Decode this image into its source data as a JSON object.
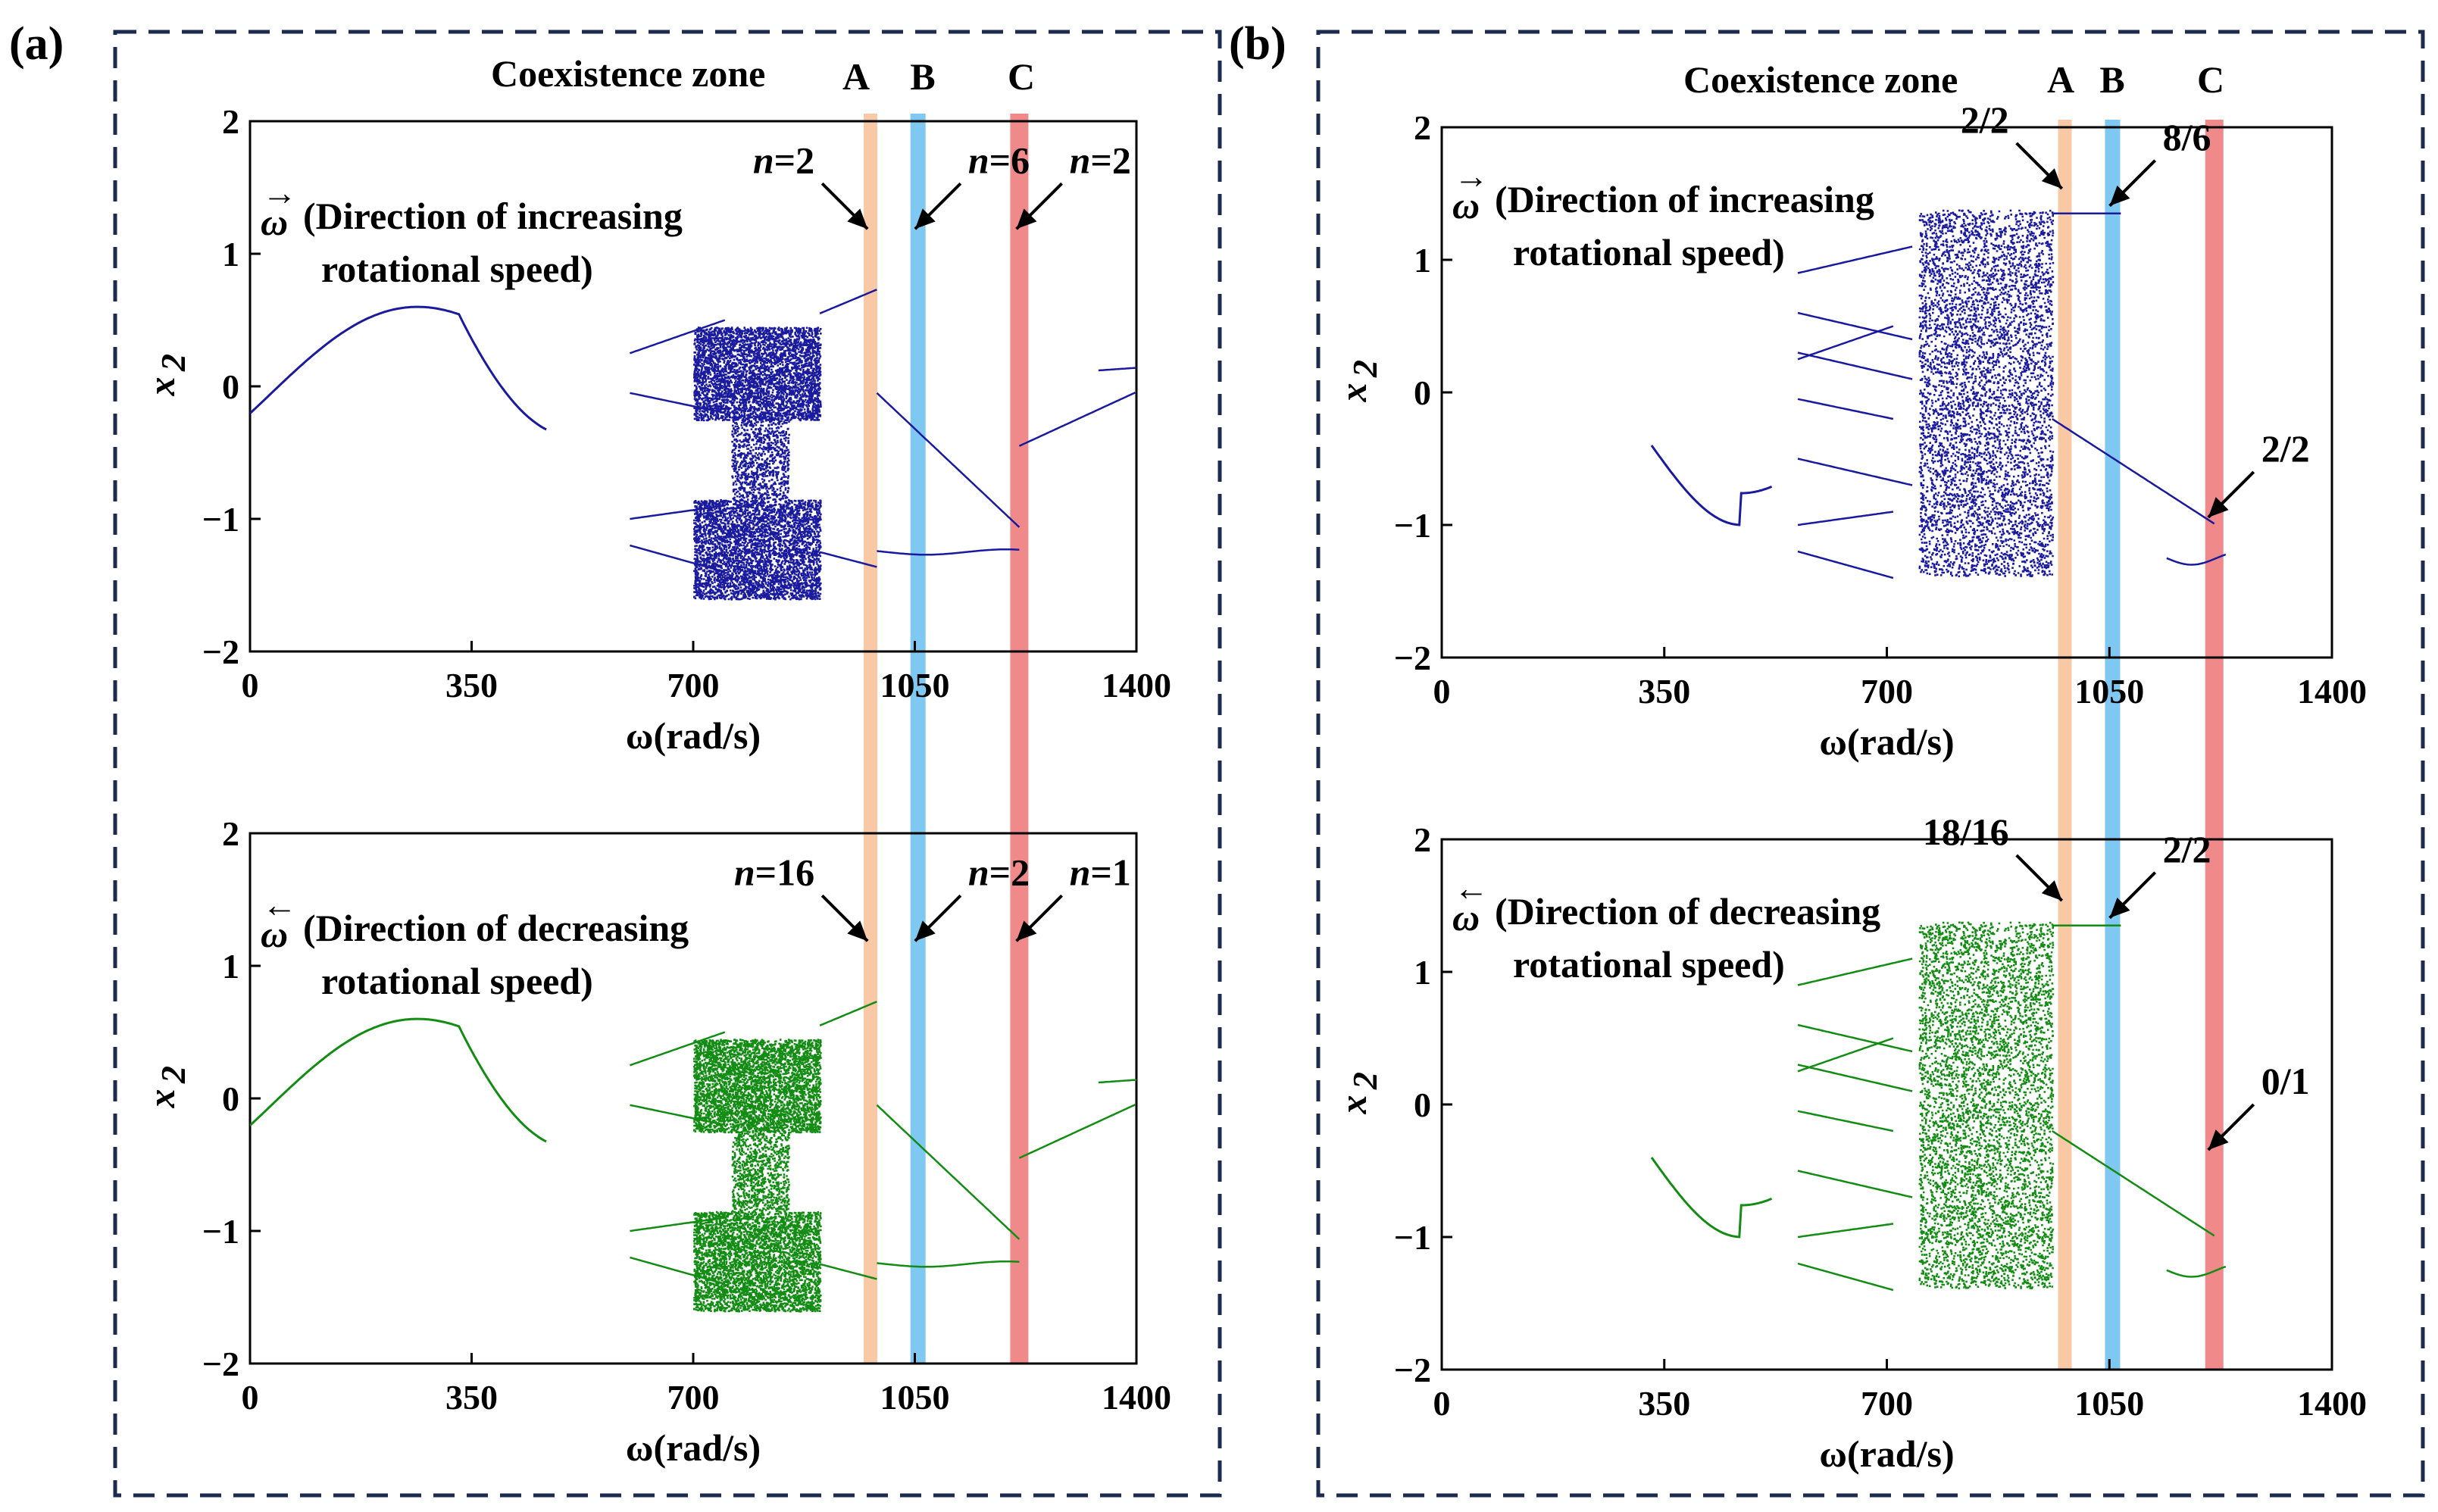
{
  "figure": {
    "panels": [
      {
        "label": "(a)",
        "header": {
          "zone_label": "Coexistence zone",
          "band_letters": [
            {
              "text": "A",
              "color": "#f4a460"
            },
            {
              "text": "B",
              "color": "#2196f3"
            },
            {
              "text": "C",
              "color": "#e53935"
            }
          ]
        }
      },
      {
        "label": "(b)",
        "header": {
          "zone_label": "Coexistence zone",
          "band_letters": [
            {
              "text": "A",
              "color": "#f4a460"
            },
            {
              "text": "B",
              "color": "#2196f3"
            },
            {
              "text": "C",
              "color": "#e53935"
            }
          ]
        }
      }
    ]
  },
  "chart_data": [
    {
      "id": "a-top",
      "type": "scatter",
      "title": "",
      "xlabel": "ω(rad/s)",
      "ylabel": "x",
      "ylabel_sub": "2",
      "xlim": [
        0,
        1400
      ],
      "ylim": [
        -2,
        2
      ],
      "xticks": [
        0,
        350,
        700,
        1050,
        1400
      ],
      "yticks": [
        2,
        1,
        0,
        -1,
        -2
      ],
      "x_tick_labels": [
        "0",
        "350",
        "700",
        "1050",
        "1400"
      ],
      "y_tick_labels": [
        "2",
        "1",
        "0",
        "−1",
        "−2"
      ],
      "series_color": "#1a1a9e",
      "direction": {
        "symbol": "ω",
        "arrow": "→",
        "line1": "(Direction of increasing",
        "line2": "rotational speed)"
      },
      "bands": [
        {
          "name": "A",
          "x": 980,
          "color": "#f9c9a6"
        },
        {
          "name": "B",
          "x": 1055,
          "color": "#7ec8f2"
        },
        {
          "name": "C",
          "x": 1215,
          "color": "#f08a8a"
        }
      ],
      "annotations": [
        {
          "italic": "n",
          "text": "=2",
          "at_x": 985,
          "at_y": 1.13
        },
        {
          "italic": "n",
          "text": "=6",
          "at_x": 1060,
          "at_y": 1.13
        },
        {
          "italic": "n",
          "text": "=2",
          "at_x": 1220,
          "at_y": 1.13
        }
      ]
    },
    {
      "id": "a-bottom",
      "type": "scatter",
      "title": "",
      "xlabel": "ω(rad/s)",
      "ylabel": "x",
      "ylabel_sub": "2",
      "xlim": [
        0,
        1400
      ],
      "ylim": [
        -2,
        2
      ],
      "xticks": [
        0,
        350,
        700,
        1050,
        1400
      ],
      "yticks": [
        2,
        1,
        0,
        -1,
        -2
      ],
      "x_tick_labels": [
        "0",
        "350",
        "700",
        "1050",
        "1400"
      ],
      "y_tick_labels": [
        "2",
        "1",
        "0",
        "−1",
        "−2"
      ],
      "series_color": "#138c13",
      "direction": {
        "symbol": "ω",
        "arrow": "←",
        "line1": "(Direction of decreasing",
        "line2": "rotational speed)"
      },
      "bands": [
        {
          "name": "A",
          "x": 980,
          "color": "#f9c9a6"
        },
        {
          "name": "B",
          "x": 1055,
          "color": "#7ec8f2"
        },
        {
          "name": "C",
          "x": 1215,
          "color": "#f08a8a"
        }
      ],
      "annotations": [
        {
          "italic": "n",
          "text": "=16",
          "at_x": 985,
          "at_y": 1.13
        },
        {
          "italic": "n",
          "text": "=2",
          "at_x": 1060,
          "at_y": 1.13
        },
        {
          "italic": "n",
          "text": "=1",
          "at_x": 1220,
          "at_y": 1.13
        }
      ]
    },
    {
      "id": "b-top",
      "type": "scatter",
      "title": "",
      "xlabel": "ω(rad/s)",
      "ylabel": "x",
      "ylabel_sub": "2",
      "xlim": [
        0,
        1400
      ],
      "ylim": [
        -2,
        2
      ],
      "xticks": [
        0,
        350,
        700,
        1050,
        1400
      ],
      "yticks": [
        2,
        1,
        0,
        -1,
        -2
      ],
      "x_tick_labels": [
        "0",
        "350",
        "700",
        "1050",
        "1400"
      ],
      "y_tick_labels": [
        "2",
        "1",
        "0",
        "−1",
        "−2"
      ],
      "series_color": "#1a1a9e",
      "direction": {
        "symbol": "ω",
        "arrow": "→",
        "line1": "(Direction of increasing",
        "line2": "rotational speed)"
      },
      "bands": [
        {
          "name": "A",
          "x": 980,
          "color": "#f9c9a6"
        },
        {
          "name": "B",
          "x": 1055,
          "color": "#7ec8f2"
        },
        {
          "name": "C",
          "x": 1215,
          "color": "#f08a8a"
        }
      ],
      "annotations": [
        {
          "italic": "",
          "text": "2/2",
          "at_x": 985,
          "at_y": 1.48
        },
        {
          "italic": "",
          "text": "8/6",
          "at_x": 1060,
          "at_y": 1.35
        },
        {
          "italic": "",
          "text": "2/2",
          "at_x": 1215,
          "at_y": -1.0
        }
      ]
    },
    {
      "id": "b-bottom",
      "type": "scatter",
      "title": "",
      "xlabel": "ω(rad/s)",
      "ylabel": "x",
      "ylabel_sub": "2",
      "xlim": [
        0,
        1400
      ],
      "ylim": [
        -2,
        2
      ],
      "xticks": [
        0,
        350,
        700,
        1050,
        1400
      ],
      "yticks": [
        2,
        1,
        0,
        -1,
        -2
      ],
      "x_tick_labels": [
        "0",
        "350",
        "700",
        "1050",
        "1400"
      ],
      "y_tick_labels": [
        "2",
        "1",
        "0",
        "−1",
        "−2"
      ],
      "series_color": "#138c13",
      "direction": {
        "symbol": "ω",
        "arrow": "←",
        "line1": "(Direction of decreasing",
        "line2": "rotational speed)"
      },
      "bands": [
        {
          "name": "A",
          "x": 980,
          "color": "#f9c9a6"
        },
        {
          "name": "B",
          "x": 1055,
          "color": "#7ec8f2"
        },
        {
          "name": "C",
          "x": 1215,
          "color": "#f08a8a"
        }
      ],
      "annotations": [
        {
          "italic": "",
          "text": "18/16",
          "at_x": 985,
          "at_y": 1.48
        },
        {
          "italic": "",
          "text": "2/2",
          "at_x": 1060,
          "at_y": 1.35
        },
        {
          "italic": "",
          "text": "0/1",
          "at_x": 1215,
          "at_y": -0.4
        }
      ]
    }
  ]
}
